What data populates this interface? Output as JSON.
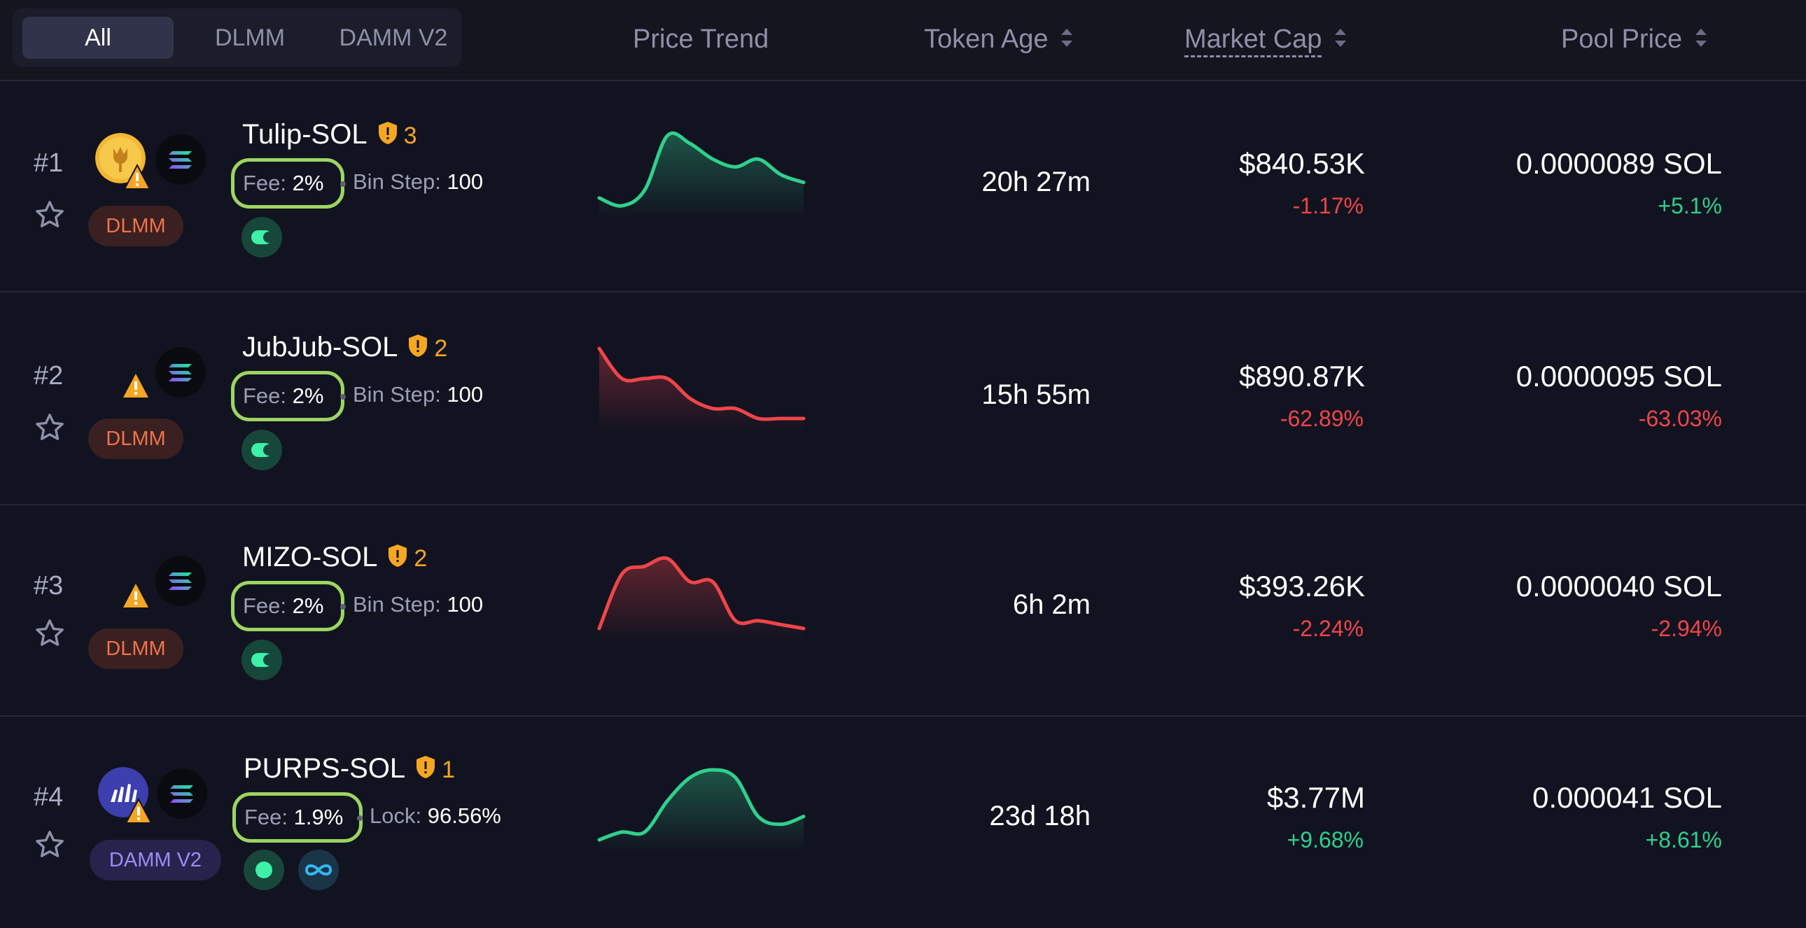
{
  "tabs": [
    {
      "label": "All",
      "active": true
    },
    {
      "label": "DLMM",
      "active": false
    },
    {
      "label": "DAMM V2",
      "active": false
    }
  ],
  "columns": {
    "price_trend": "Price Trend",
    "token_age": "Token Age",
    "market_cap": "Market Cap",
    "pool_price": "Pool Price"
  },
  "colors": {
    "positive": "#2fd08c",
    "negative": "#f0454a",
    "fee_outline": "#9cd562",
    "audit": "#f5a623"
  },
  "rows": [
    {
      "rank": "#1",
      "pair": "Tulip-SOL",
      "audit_count": "3",
      "pool_type": "DLMM",
      "fee_label": "Fee:",
      "fee_value": "2%",
      "extra_label": "Bin Step:",
      "extra_value": "100",
      "token_age": "20h 27m",
      "market_cap": "$840.53K",
      "market_cap_change": "-1.17%",
      "pool_price": "0.0000089 SOL",
      "pool_price_change": "+5.1%",
      "trend": "up",
      "trend_values": [
        2,
        1,
        3,
        10,
        9,
        7,
        6,
        7,
        5,
        4
      ]
    },
    {
      "rank": "#2",
      "pair": "JubJub-SOL",
      "audit_count": "2",
      "pool_type": "DLMM",
      "fee_label": "Fee:",
      "fee_value": "2%",
      "extra_label": "Bin Step:",
      "extra_value": "100",
      "token_age": "15h 55m",
      "market_cap": "$890.87K",
      "market_cap_change": "-62.89%",
      "pool_price": "0.0000095 SOL",
      "pool_price_change": "-63.03%",
      "trend": "down",
      "trend_values": [
        10,
        7,
        7,
        7,
        5,
        4,
        4,
        3,
        3,
        3
      ]
    },
    {
      "rank": "#3",
      "pair": "MIZO-SOL",
      "audit_count": "2",
      "pool_type": "DLMM",
      "fee_label": "Fee:",
      "fee_value": "2%",
      "extra_label": "Bin Step:",
      "extra_value": "100",
      "token_age": "6h 2m",
      "market_cap": "$393.26K",
      "market_cap_change": "-2.24%",
      "pool_price": "0.0000040 SOL",
      "pool_price_change": "-2.94%",
      "trend": "down",
      "trend_values": [
        1,
        8,
        9,
        10,
        7,
        7,
        2,
        2,
        1.5,
        1
      ]
    },
    {
      "rank": "#4",
      "pair": "PURPS-SOL",
      "audit_count": "1",
      "pool_type": "DAMM V2",
      "fee_label": "Fee:",
      "fee_value": "1.9%",
      "extra_label": "Lock:",
      "extra_value": "96.56%",
      "token_age": "23d 18h",
      "market_cap": "$3.77M",
      "market_cap_change": "+9.68%",
      "pool_price": "0.000041 SOL",
      "pool_price_change": "+8.61%",
      "trend": "up",
      "trend_values": [
        1,
        2,
        2,
        6,
        9,
        10,
        9,
        4,
        3,
        4
      ]
    }
  ]
}
